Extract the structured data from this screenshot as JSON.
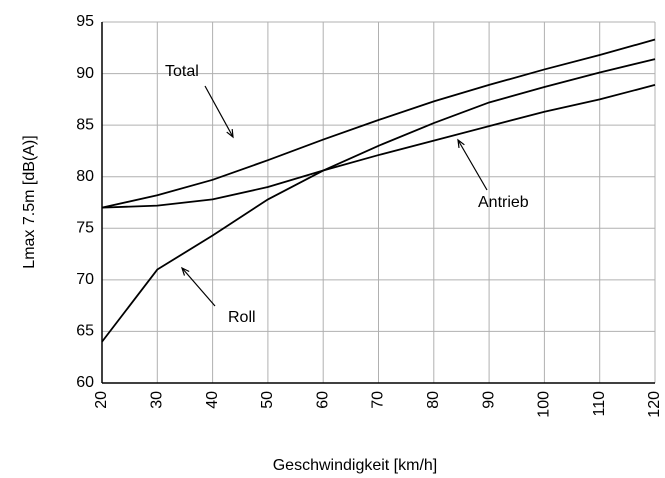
{
  "chart_data": {
    "type": "line",
    "x_label": "Geschwindigkeit [km/h]",
    "y_label": "Lmax 7.5m  [dB(A)]",
    "x": [
      20,
      30,
      40,
      50,
      60,
      70,
      80,
      90,
      100,
      110,
      120
    ],
    "series": [
      {
        "name": "Total",
        "color": "#000000",
        "values": [
          77,
          78.2,
          79.7,
          81.6,
          83.6,
          85.5,
          87.3,
          88.9,
          90.4,
          91.8,
          93.3
        ]
      },
      {
        "name": "Antrieb",
        "color": "#000000",
        "values": [
          77,
          77.2,
          77.8,
          79.0,
          80.6,
          82.1,
          83.5,
          84.9,
          86.3,
          87.5,
          88.9
        ]
      },
      {
        "name": "Roll",
        "color": "#000000",
        "values": [
          64,
          71,
          74.3,
          77.8,
          80.6,
          83.0,
          85.2,
          87.2,
          88.7,
          90.1,
          91.4
        ]
      }
    ],
    "xlim": [
      20,
      120
    ],
    "xticks": [
      20,
      30,
      40,
      50,
      60,
      70,
      80,
      90,
      100,
      110,
      120
    ],
    "ylim": [
      60,
      95
    ],
    "yticks": [
      60,
      65,
      70,
      75,
      80,
      85,
      90,
      95
    ],
    "grid": true
  }
}
